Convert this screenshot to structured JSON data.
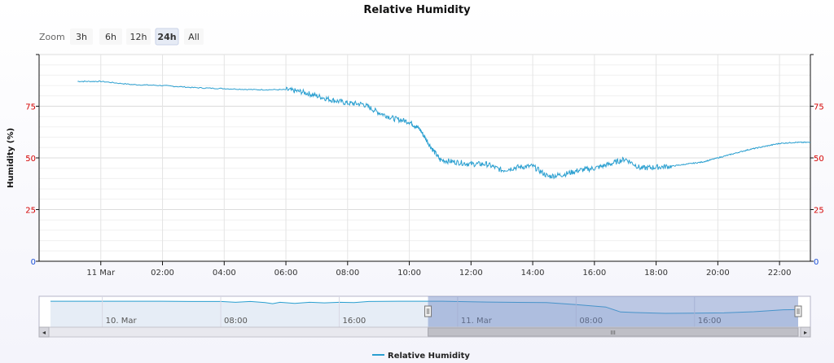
{
  "chart_data": {
    "type": "line",
    "title": "Relative Humidity",
    "ylabel": "Humidity (%)",
    "ylim": [
      0,
      100
    ],
    "yticks": [
      0,
      25,
      50,
      75
    ],
    "xlim": [
      "2024-03-10T22:00",
      "2024-03-11T23:00"
    ],
    "xtick_labels": [
      {
        "t": "2024-03-11T00:00",
        "label": "11 Mar"
      },
      {
        "t": "2024-03-11T02:00",
        "label": "02:00"
      },
      {
        "t": "2024-03-11T04:00",
        "label": "04:00"
      },
      {
        "t": "2024-03-11T06:00",
        "label": "06:00"
      },
      {
        "t": "2024-03-11T08:00",
        "label": "08:00"
      },
      {
        "t": "2024-03-11T10:00",
        "label": "10:00"
      },
      {
        "t": "2024-03-11T12:00",
        "label": "12:00"
      },
      {
        "t": "2024-03-11T14:00",
        "label": "14:00"
      },
      {
        "t": "2024-03-11T16:00",
        "label": "16:00"
      },
      {
        "t": "2024-03-11T18:00",
        "label": "18:00"
      },
      {
        "t": "2024-03-11T20:00",
        "label": "20:00"
      },
      {
        "t": "2024-03-11T22:00",
        "label": "22:00"
      }
    ],
    "grid": true,
    "legend_position": "bottom-center",
    "series": [
      {
        "name": "Relative Humidity",
        "color": "#2a9fd0",
        "points": [
          [
            "2024-03-10T23:15",
            87
          ],
          [
            "2024-03-11T00:00",
            87
          ],
          [
            "2024-03-11T01:00",
            85.5
          ],
          [
            "2024-03-11T02:00",
            85
          ],
          [
            "2024-03-11T03:00",
            84
          ],
          [
            "2024-03-11T04:00",
            83.5
          ],
          [
            "2024-03-11T05:00",
            83
          ],
          [
            "2024-03-11T06:00",
            83
          ],
          [
            "2024-03-11T06:30",
            82
          ],
          [
            "2024-03-11T07:00",
            80
          ],
          [
            "2024-03-11T07:30",
            78
          ],
          [
            "2024-03-11T08:00",
            76.5
          ],
          [
            "2024-03-11T08:30",
            76
          ],
          [
            "2024-03-11T09:00",
            72
          ],
          [
            "2024-03-11T09:30",
            69
          ],
          [
            "2024-03-11T10:00",
            67.5
          ],
          [
            "2024-03-11T10:20",
            64
          ],
          [
            "2024-03-11T10:40",
            56
          ],
          [
            "2024-03-11T11:00",
            49
          ],
          [
            "2024-03-11T11:30",
            48
          ],
          [
            "2024-03-11T12:00",
            47
          ],
          [
            "2024-03-11T12:30",
            47
          ],
          [
            "2024-03-11T13:00",
            44
          ],
          [
            "2024-03-11T13:30",
            45.5
          ],
          [
            "2024-03-11T14:00",
            46
          ],
          [
            "2024-03-11T14:30",
            41
          ],
          [
            "2024-03-11T15:00",
            42
          ],
          [
            "2024-03-11T15:30",
            44
          ],
          [
            "2024-03-11T16:00",
            45
          ],
          [
            "2024-03-11T16:30",
            47
          ],
          [
            "2024-03-11T17:00",
            49.5
          ],
          [
            "2024-03-11T17:30",
            45
          ],
          [
            "2024-03-11T18:00",
            45.5
          ],
          [
            "2024-03-11T18:30",
            46
          ],
          [
            "2024-03-11T19:00",
            47
          ],
          [
            "2024-03-11T19:30",
            48
          ],
          [
            "2024-03-11T20:00",
            50
          ],
          [
            "2024-03-11T20:30",
            52
          ],
          [
            "2024-03-11T21:00",
            54
          ],
          [
            "2024-03-11T21:30",
            55.5
          ],
          [
            "2024-03-11T22:00",
            57
          ],
          [
            "2024-03-11T22:30",
            57.5
          ],
          [
            "2024-03-11T23:00",
            57.5
          ]
        ]
      }
    ]
  },
  "zoom": {
    "label": "Zoom",
    "buttons": [
      {
        "label": "3h",
        "active": false
      },
      {
        "label": "6h",
        "active": false
      },
      {
        "label": "12h",
        "active": false
      },
      {
        "label": "24h",
        "active": true
      },
      {
        "label": "All",
        "active": false
      }
    ]
  },
  "navigator": {
    "xlim": [
      "2024-03-09T20:30",
      "2024-03-11T23:00"
    ],
    "selected_range": [
      "2024-03-10T22:00",
      "2024-03-11T23:00"
    ],
    "labels": [
      {
        "t": "2024-03-10T00:00",
        "label": "10. Mar"
      },
      {
        "t": "2024-03-10T08:00",
        "label": "08:00"
      },
      {
        "t": "2024-03-10T16:00",
        "label": "16:00"
      },
      {
        "t": "2024-03-11T00:00",
        "label": "11. Mar"
      },
      {
        "t": "2024-03-11T08:00",
        "label": "08:00"
      },
      {
        "t": "2024-03-11T16:00",
        "label": "16:00"
      }
    ],
    "points": [
      [
        "2024-03-09T20:30",
        88
      ],
      [
        "2024-03-10T00:00",
        88
      ],
      [
        "2024-03-10T04:00",
        88
      ],
      [
        "2024-03-10T06:00",
        87
      ],
      [
        "2024-03-10T08:00",
        87
      ],
      [
        "2024-03-10T09:00",
        84
      ],
      [
        "2024-03-10T10:00",
        87
      ],
      [
        "2024-03-10T11:00",
        83
      ],
      [
        "2024-03-10T11:30",
        79
      ],
      [
        "2024-03-10T12:00",
        84
      ],
      [
        "2024-03-10T13:00",
        80
      ],
      [
        "2024-03-10T14:00",
        84
      ],
      [
        "2024-03-10T15:00",
        82
      ],
      [
        "2024-03-10T16:00",
        84
      ],
      [
        "2024-03-10T17:00",
        83
      ],
      [
        "2024-03-10T18:00",
        87
      ],
      [
        "2024-03-10T20:00",
        88
      ],
      [
        "2024-03-10T23:00",
        88
      ],
      [
        "2024-03-11T02:00",
        85
      ],
      [
        "2024-03-11T06:00",
        83
      ],
      [
        "2024-03-11T08:00",
        76
      ],
      [
        "2024-03-11T10:00",
        67
      ],
      [
        "2024-03-11T11:00",
        49
      ],
      [
        "2024-03-11T12:00",
        47
      ],
      [
        "2024-03-11T14:00",
        44
      ],
      [
        "2024-03-11T16:00",
        45
      ],
      [
        "2024-03-11T18:00",
        46
      ],
      [
        "2024-03-11T20:00",
        50
      ],
      [
        "2024-03-11T22:00",
        57
      ],
      [
        "2024-03-11T23:00",
        57.5
      ]
    ]
  },
  "scrollbar": {
    "left_arrow": "◂",
    "right_arrow": "▸",
    "grip": "III"
  },
  "legend": {
    "label": "Relative Humidity"
  },
  "colors": {
    "line": "#2a9fd0",
    "nav_fill": "#c7d6ea",
    "selection": "#6b84c4",
    "tick_red": "#d40000",
    "tick_blue": "#1a4fd6"
  }
}
